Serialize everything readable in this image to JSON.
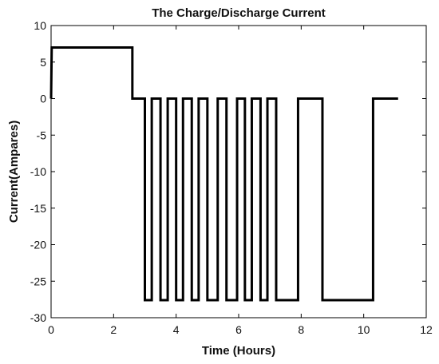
{
  "chart_data": {
    "type": "line",
    "title": "The Charge/Discharge Current",
    "xlabel": "Time (Hours)",
    "ylabel": "Current(Ampares)",
    "xlim": [
      0,
      12
    ],
    "ylim": [
      -30,
      10
    ],
    "xticks": [
      "0",
      "2",
      "4",
      "6",
      "8",
      "10",
      "12"
    ],
    "yticks": [
      "10",
      "5",
      "0",
      "-5",
      "-10",
      "-15",
      "-20",
      "-25",
      "-30"
    ],
    "grid": false,
    "line_color": "#000000",
    "series": [
      {
        "x": [
          0,
          0.02,
          2.6,
          2.6,
          3.0,
          3.0,
          3.22,
          3.22,
          3.5,
          3.5,
          3.73,
          3.73,
          4.0,
          4.0,
          4.22,
          4.22,
          4.5,
          4.5,
          4.72,
          4.72,
          5.0,
          5.0,
          5.33,
          5.33,
          5.61,
          5.61,
          5.95,
          5.95,
          6.2,
          6.2,
          6.42,
          6.42,
          6.7,
          6.7,
          6.92,
          6.92,
          7.2,
          7.2,
          7.4,
          7.4,
          7.9,
          7.9,
          8.68,
          8.68,
          10.3,
          10.3,
          11.1
        ],
        "y": [
          0,
          7,
          7,
          0,
          0,
          -27.6,
          -27.6,
          0,
          0,
          -27.6,
          -27.6,
          0,
          0,
          -27.6,
          -27.6,
          0,
          0,
          -27.6,
          -27.6,
          0,
          0,
          -27.6,
          -27.6,
          0,
          0,
          -27.6,
          -27.6,
          0,
          0,
          -27.6,
          -27.6,
          0,
          0,
          -27.6,
          -27.6,
          0,
          0,
          -27.6,
          -27.6,
          -27.6,
          -27.6,
          0,
          0,
          -27.6,
          -27.6,
          0,
          0
        ]
      }
    ]
  }
}
